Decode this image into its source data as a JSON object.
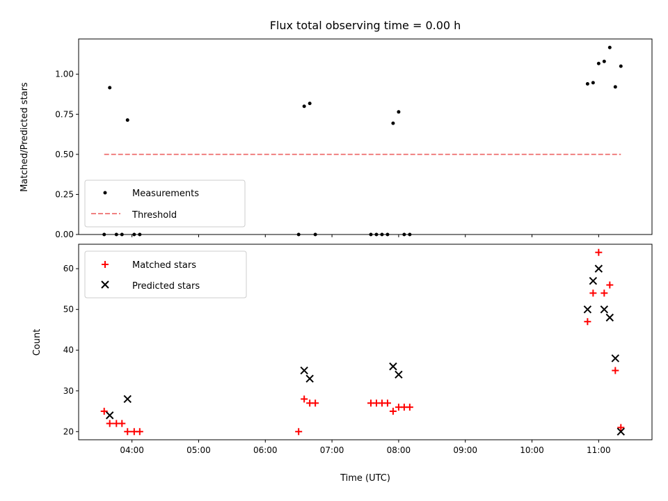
{
  "chart_data": [
    {
      "type": "scatter",
      "title": "Flux total observing time = 0.00 h",
      "xlabel": "",
      "ylabel": "Matched/Predicted stars",
      "xlim": [
        "03:12",
        "11:48"
      ],
      "ylim": [
        0,
        1.22
      ],
      "yticks": [
        "0.00",
        "0.25",
        "0.50",
        "0.75",
        "1.00"
      ],
      "xticks": [
        "04:00",
        "05:00",
        "06:00",
        "07:00",
        "08:00",
        "09:00",
        "10:00",
        "11:00"
      ],
      "grid": false,
      "legend_position": "lower-left",
      "series": [
        {
          "name": "Measurements",
          "kind": "points",
          "color": "#000000",
          "x": [
            "03:35",
            "03:40",
            "03:46",
            "03:51",
            "03:56",
            "04:02",
            "04:07",
            "06:30",
            "06:35",
            "06:40",
            "06:45",
            "07:35",
            "07:40",
            "07:45",
            "07:50",
            "07:55",
            "08:00",
            "08:05",
            "08:10",
            "10:50",
            "10:55",
            "11:00",
            "11:05",
            "11:10",
            "11:15",
            "11:20"
          ],
          "y": [
            0,
            0.916,
            0,
            0,
            0.714,
            0,
            0,
            0,
            0.8,
            0.818,
            0,
            0,
            0,
            0,
            0,
            0.694,
            0.765,
            0,
            0,
            0.94,
            0.947,
            1.067,
            1.08,
            1.167,
            0.921,
            1.05
          ]
        },
        {
          "name": "Threshold",
          "kind": "dashed-line",
          "color": "#f08080",
          "x": [
            "03:35",
            "11:20"
          ],
          "y": [
            0.5,
            0.5
          ]
        }
      ]
    },
    {
      "type": "scatter",
      "title": "",
      "xlabel": "Time (UTC)",
      "ylabel": "Count",
      "xlim": [
        "03:12",
        "11:48"
      ],
      "ylim": [
        18,
        66
      ],
      "yticks": [
        "20",
        "30",
        "40",
        "50",
        "60"
      ],
      "xticks": [
        "04:00",
        "05:00",
        "06:00",
        "07:00",
        "08:00",
        "09:00",
        "10:00",
        "11:00"
      ],
      "grid": false,
      "legend_position": "upper-left",
      "series": [
        {
          "name": "Matched stars",
          "marker": "plus",
          "color": "#ff0000",
          "x": [
            "03:35",
            "03:40",
            "03:46",
            "03:51",
            "03:56",
            "04:02",
            "04:07",
            "06:30",
            "06:35",
            "06:40",
            "06:45",
            "07:35",
            "07:40",
            "07:45",
            "07:50",
            "07:55",
            "08:00",
            "08:05",
            "08:10",
            "10:50",
            "10:55",
            "11:00",
            "11:05",
            "11:10",
            "11:15",
            "11:20"
          ],
          "y": [
            25,
            22,
            22,
            22,
            20,
            20,
            20,
            20,
            28,
            27,
            27,
            27,
            27,
            27,
            27,
            25,
            26,
            26,
            26,
            47,
            54,
            64,
            54,
            56,
            35,
            21
          ]
        },
        {
          "name": "Predicted stars",
          "marker": "x",
          "color": "#000000",
          "x": [
            "03:40",
            "03:56",
            "06:35",
            "06:40",
            "07:55",
            "08:00",
            "10:50",
            "10:55",
            "11:00",
            "11:05",
            "11:10",
            "11:15",
            "11:20"
          ],
          "y": [
            24,
            28,
            35,
            33,
            36,
            34,
            50,
            57,
            60,
            50,
            48,
            38,
            20
          ]
        }
      ]
    }
  ]
}
